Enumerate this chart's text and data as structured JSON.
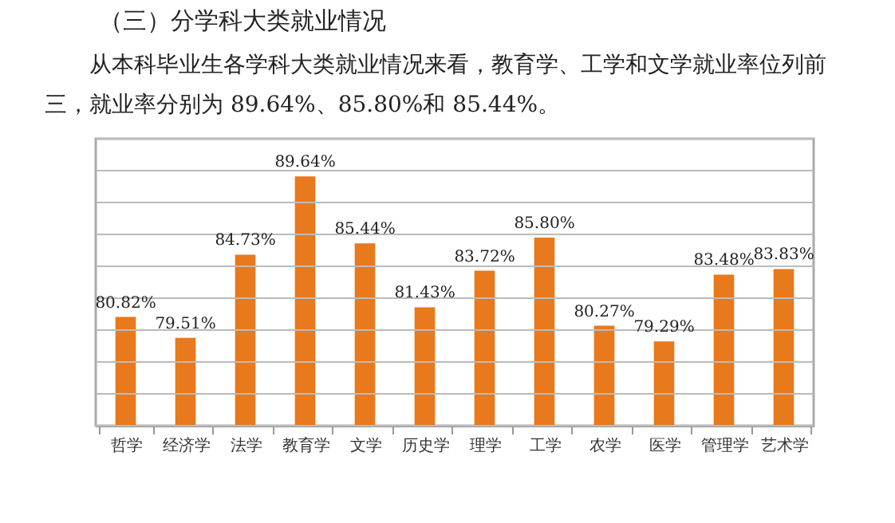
{
  "chart_data": {
    "type": "bar",
    "title": "（三）分学科大类就业情况",
    "subtitle": "从本科毕业生各学科大类就业情况来看，教育学、工学和文学就业率位列前三，就业率分别为 89.64%、85.80%和 85.44%。",
    "categories": [
      "哲学",
      "经济学",
      "法学",
      "教育学",
      "文学",
      "历史学",
      "理学",
      "工学",
      "农学",
      "医学",
      "管理学",
      "艺术学"
    ],
    "values": [
      80.82,
      79.51,
      84.73,
      89.64,
      85.44,
      81.43,
      83.72,
      85.8,
      80.27,
      79.29,
      83.48,
      83.83
    ],
    "value_labels": [
      "80.82%",
      "79.51%",
      "84.73%",
      "89.64%",
      "85.44%",
      "81.43%",
      "83.72%",
      "85.80%",
      "80.27%",
      "79.29%",
      "83.48%",
      "83.83%"
    ],
    "color": "#e8791c",
    "ylim": [
      74,
      92
    ],
    "yticks": [
      {
        "value": 74,
        "label": null
      },
      {
        "value": 76,
        "label": null
      },
      {
        "value": 78,
        "label": null
      },
      {
        "value": 80,
        "label": null
      },
      {
        "value": 82,
        "label": null
      },
      {
        "value": 84,
        "label": null
      },
      {
        "value": 86,
        "label": null
      },
      {
        "value": 88,
        "label": null
      },
      {
        "value": 90,
        "label": null
      },
      {
        "value": 92,
        "label": null
      }
    ],
    "grid": "y",
    "tick_labels": "x"
  }
}
